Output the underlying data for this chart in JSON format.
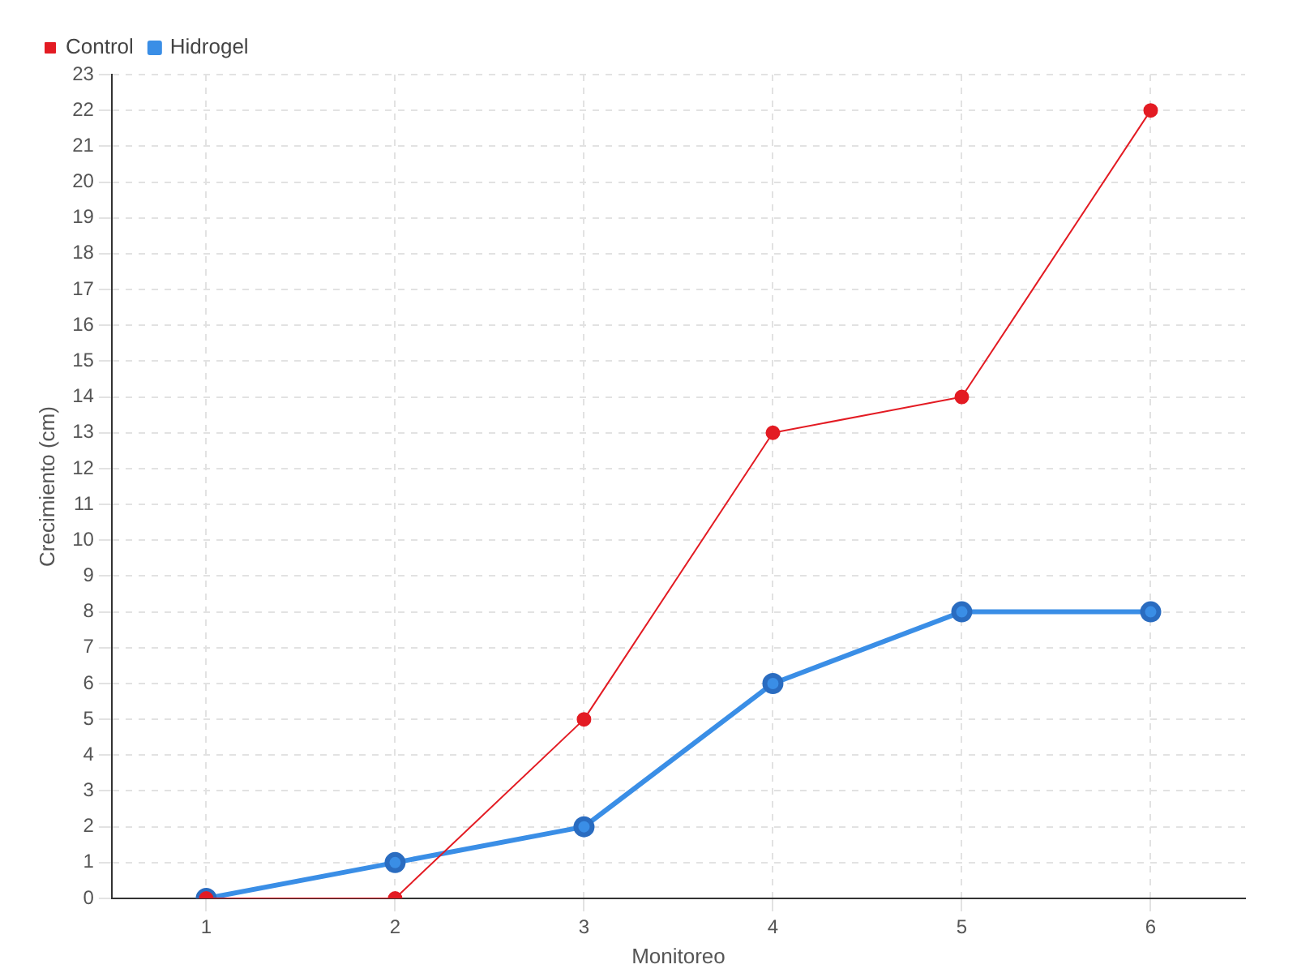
{
  "chart_data": {
    "type": "line",
    "xlabel": "Monitoreo",
    "ylabel": "Crecimiento (cm)",
    "categories": [
      "1",
      "2",
      "3",
      "4",
      "5",
      "6"
    ],
    "series": [
      {
        "name": "Hidrogel",
        "color": "#3a8ee6",
        "values": [
          0,
          1,
          2,
          6,
          8,
          8
        ]
      },
      {
        "name": "Control",
        "color": "#e31b23",
        "values": [
          0,
          0,
          5,
          13,
          14,
          22
        ]
      }
    ],
    "ylim": [
      0,
      23
    ],
    "yticks": [
      0,
      1,
      2,
      3,
      4,
      5,
      6,
      7,
      8,
      9,
      10,
      11,
      12,
      13,
      14,
      15,
      16,
      17,
      18,
      19,
      20,
      21,
      22,
      23
    ],
    "grid": true,
    "legend": "top left",
    "marker": "circle",
    "line_style": "solid"
  }
}
